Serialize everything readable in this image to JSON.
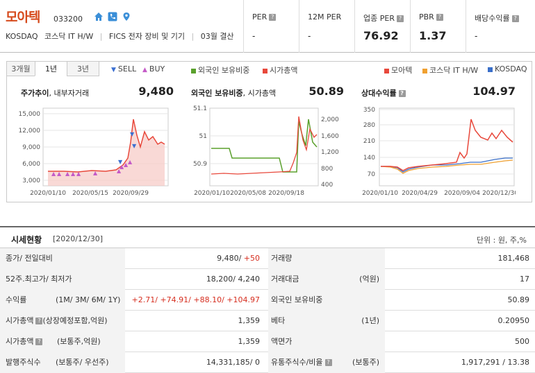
{
  "company": {
    "name": "모아텍",
    "code": "033200",
    "market": "KOSDAQ",
    "sector": "코스닥 IT H/W",
    "fics": "FICS 전자 장비 및 기기",
    "settle": "03월 결산"
  },
  "metrics": [
    {
      "label": "PER",
      "value": "-"
    },
    {
      "label": "12M PER",
      "value": "-"
    },
    {
      "label": "업종 PER",
      "value": "76.92"
    },
    {
      "label": "PBR",
      "value": "1.37"
    },
    {
      "label": "배당수익률",
      "value": "-"
    }
  ],
  "tabs": [
    "3개월",
    "1년",
    "3년"
  ],
  "legends": {
    "sell": "SELL",
    "buy": "BUY",
    "foreign": "외국인 보유비중",
    "mcap": "시가총액",
    "moatech": "모아텍",
    "itHw": "코스닥 IT H/W",
    "kosdaq": "KOSDAQ"
  },
  "colors": {
    "red": "#e8483b",
    "green": "#5aa02c",
    "blue": "#3a6fc9",
    "orange": "#f0a030",
    "sell": "#3b6fd1",
    "buy": "#c45ac7"
  },
  "charts": {
    "price": {
      "title": "주가추이",
      "sub": ", 내부자거래",
      "value": "9,480",
      "yticks": [
        "15,000",
        "12,000",
        "9,000",
        "6,000",
        "3,000"
      ],
      "xticks": [
        "2020/01/10",
        "2020/05/15",
        "2020/09/29"
      ]
    },
    "foreign": {
      "title": "외국인 보유비중",
      "sub": ", 시가총액",
      "value": "50.89",
      "yticksL": [
        "51.1",
        "51",
        "50.9"
      ],
      "yticksR": [
        "2,000",
        "1,600",
        "1,200",
        "800",
        "400"
      ],
      "xticks": [
        "2020/01/10",
        "2020/05/08",
        "2020/09/18"
      ]
    },
    "relative": {
      "title": "상대수익률",
      "value": "104.97",
      "yticks": [
        "350",
        "280",
        "210",
        "140",
        "70"
      ],
      "xticks": [
        "2020/01/10",
        "2020/04/29",
        "2020/09/04",
        "2020/12/30"
      ]
    }
  },
  "chart_data": [
    {
      "type": "area",
      "title": "주가추이",
      "x": [
        "2020/01/10",
        "2020/05/15",
        "2020/08/20",
        "2020/09/10",
        "2020/09/29",
        "2020/10/20",
        "2020/11/20",
        "2020/12/30"
      ],
      "series": [
        {
          "name": "시가총액",
          "values": [
            4400,
            4300,
            4600,
            6000,
            14000,
            11000,
            11500,
            9480
          ]
        }
      ],
      "ylim": [
        2000,
        16000
      ]
    },
    {
      "type": "line",
      "title": "외국인 보유비중",
      "x": [
        "2020/01/10",
        "2020/03/10",
        "2020/05/08",
        "2020/07/20",
        "2020/09/18",
        "2020/10/20",
        "2020/12/30"
      ],
      "series": [
        {
          "name": "외국인 보유비중",
          "values": [
            50.95,
            50.94,
            50.93,
            50.93,
            50.92,
            51.04,
            50.89
          ]
        },
        {
          "name": "시가총액",
          "values": [
            800,
            820,
            780,
            850,
            900,
            1700,
            1359
          ]
        }
      ]
    },
    {
      "type": "line",
      "title": "상대수익률",
      "x": [
        "2020/01/10",
        "2020/04/29",
        "2020/09/04",
        "2020/10/15",
        "2020/12/30"
      ],
      "series": [
        {
          "name": "모아텍",
          "values": [
            100,
            100,
            140,
            300,
            210
          ]
        },
        {
          "name": "코스닥 IT H/W",
          "values": [
            100,
            85,
            115,
            120,
            135
          ]
        },
        {
          "name": "KOSDAQ",
          "values": [
            100,
            90,
            120,
            125,
            140
          ]
        }
      ],
      "ylim": [
        70,
        350
      ]
    }
  ],
  "market": {
    "title": "시세현황",
    "date": "[2020/12/30]",
    "unit": "단위 : 원, 주,%",
    "rows": [
      {
        "l1": "종가/ 전일대비",
        "s1": "",
        "v1a": "9,480/ ",
        "v1b": "+50",
        "l2": "거래량",
        "s2": "",
        "v2": "181,468"
      },
      {
        "l1": "52주.최고가/ 최저가",
        "s1": "",
        "v1a": "18,200/ 4,240",
        "v1b": "",
        "l2": "거래대금",
        "s2": "(억원)",
        "v2": "17"
      },
      {
        "l1": "수익률",
        "s1": "(1M/ 3M/ 6M/ 1Y)",
        "v1a": "",
        "v1b": "+2.71/ +74.91/ +88.10/ +104.97",
        "l2": "외국인 보유비중",
        "s2": "",
        "v2": "50.89"
      },
      {
        "l1": "시가총액",
        "s1": "(상장예정포함,억원)",
        "v1a": "1,359",
        "v1b": "",
        "l2": "베타",
        "s2": "(1년)",
        "v2": "0.20950"
      },
      {
        "l1": "시가총액",
        "s1": "(보통주,억원)",
        "v1a": "1,359",
        "v1b": "",
        "l2": "액면가",
        "s2": "",
        "v2": "500"
      },
      {
        "l1": "발행주식수",
        "s1": "(보통주/ 우선주)",
        "v1a": "14,331,185/ 0",
        "v1b": "",
        "l2": "유통주식수/비율",
        "s2": "(보통주)",
        "v2": "1,917,291 / 13.38"
      }
    ]
  }
}
